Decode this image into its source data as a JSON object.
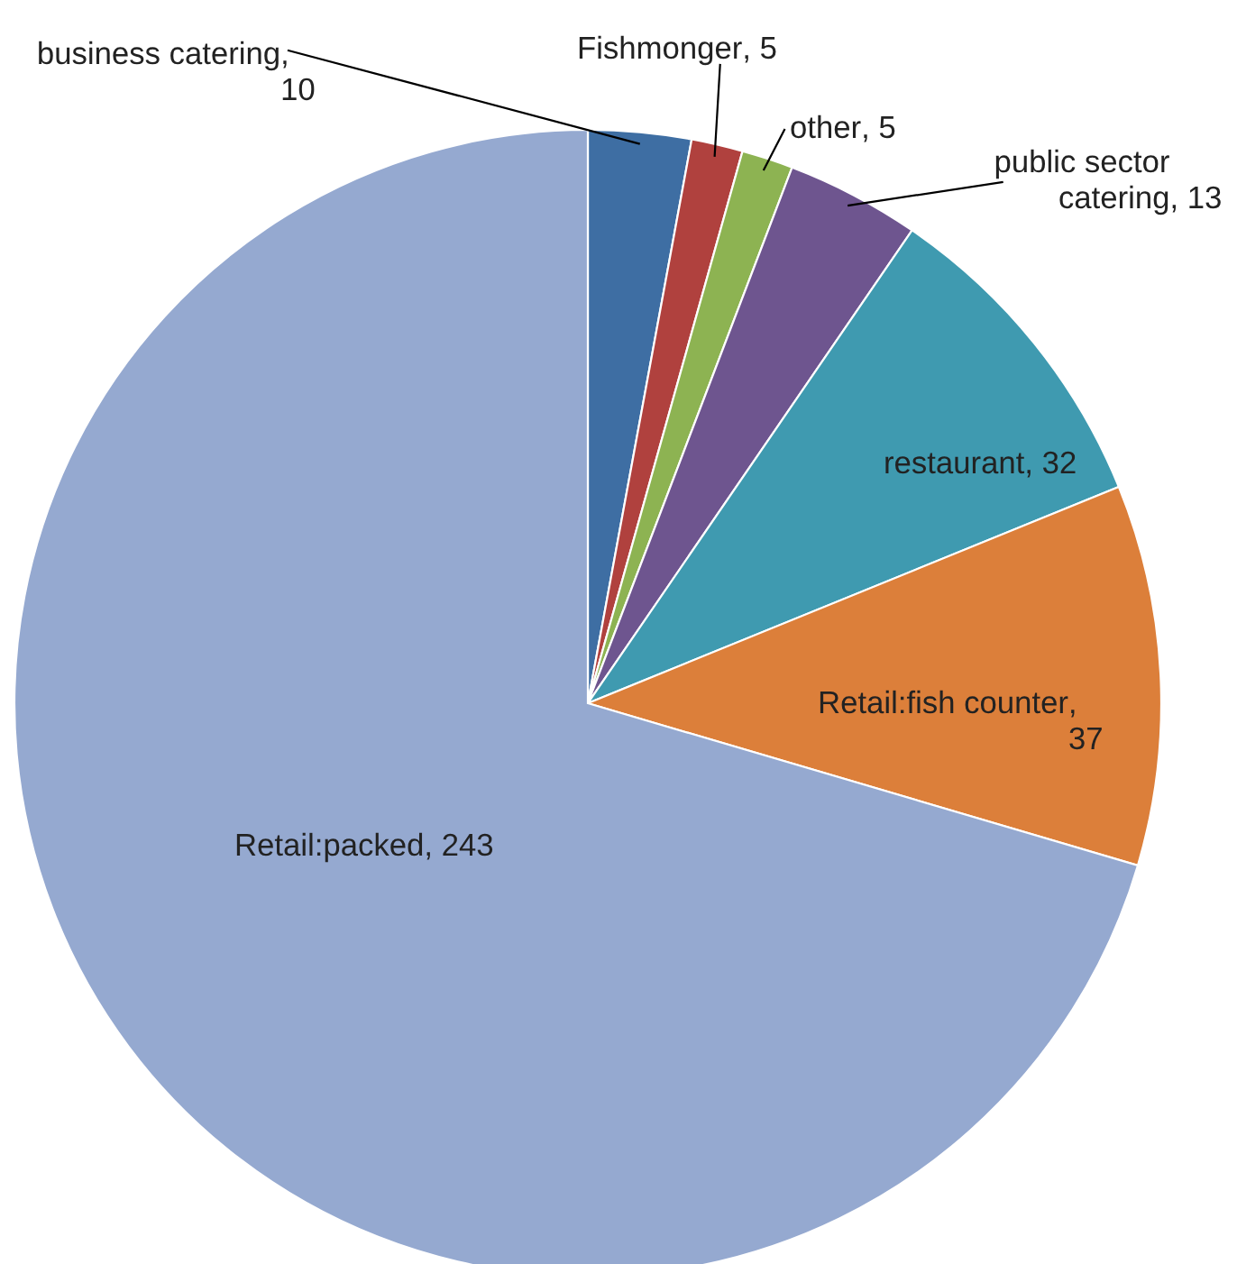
{
  "chart_data": {
    "type": "pie",
    "categories": [
      "business catering",
      "Fishmonger",
      "other",
      "public sector catering",
      "restaurant",
      "Retail:fish counter",
      "Retail:packed"
    ],
    "values": [
      10,
      5,
      5,
      13,
      32,
      37,
      243
    ],
    "colors": [
      "#3e6ea3",
      "#b0413e",
      "#8db352",
      "#6e558f",
      "#3f9ab0",
      "#dc7f3a",
      "#95a9d0"
    ],
    "value_labels": [
      ", 10",
      ", 5",
      ", 5",
      ", 13",
      ", 32",
      ", 37",
      ", 243"
    ]
  }
}
